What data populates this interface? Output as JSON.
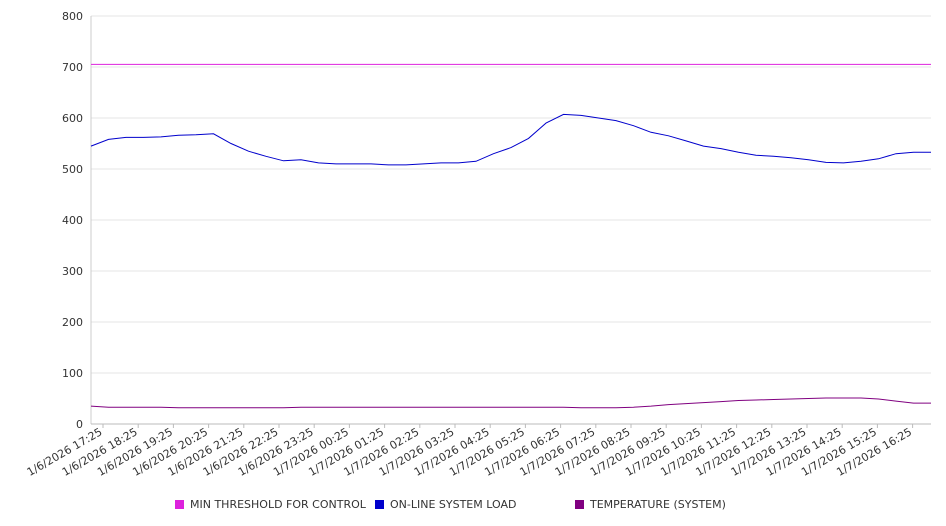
{
  "chart_data": {
    "type": "line",
    "yticks": [
      0,
      100,
      200,
      300,
      400,
      500,
      600,
      700,
      800
    ],
    "ylim": [
      0,
      800
    ],
    "grid": true,
    "legend_position": "bottom",
    "x_tick_labels": [
      "1/6/2026 17:25",
      "1/6/2026 18:25",
      "1/6/2026 19:25",
      "1/6/2026 20:25",
      "1/6/2026 21:25",
      "1/6/2026 22:25",
      "1/6/2026 23:25",
      "1/7/2026 00:25",
      "1/7/2026 01:25",
      "1/7/2026 02:25",
      "1/7/2026 03:25",
      "1/7/2026 04:25",
      "1/7/2026 05:25",
      "1/7/2026 06:25",
      "1/7/2026 07:25",
      "1/7/2026 08:25",
      "1/7/2026 09:25",
      "1/7/2026 10:25",
      "1/7/2026 11:25",
      "1/7/2026 12:25",
      "1/7/2026 13:25",
      "1/7/2026 14:25",
      "1/7/2026 15:25",
      "1/7/2026 16:25"
    ],
    "x": [
      "1/6/2026 17:25",
      "1/6/2026 17:55",
      "1/6/2026 18:25",
      "1/6/2026 18:55",
      "1/6/2026 19:25",
      "1/6/2026 19:55",
      "1/6/2026 20:25",
      "1/6/2026 20:55",
      "1/6/2026 21:25",
      "1/6/2026 21:55",
      "1/6/2026 22:25",
      "1/6/2026 22:55",
      "1/6/2026 23:25",
      "1/6/2026 23:55",
      "1/7/2026 00:25",
      "1/7/2026 00:55",
      "1/7/2026 01:25",
      "1/7/2026 01:55",
      "1/7/2026 02:25",
      "1/7/2026 02:55",
      "1/7/2026 03:25",
      "1/7/2026 03:55",
      "1/7/2026 04:25",
      "1/7/2026 04:55",
      "1/7/2026 05:25",
      "1/7/2026 05:55",
      "1/7/2026 06:25",
      "1/7/2026 06:55",
      "1/7/2026 07:25",
      "1/7/2026 07:55",
      "1/7/2026 08:25",
      "1/7/2026 08:55",
      "1/7/2026 09:25",
      "1/7/2026 09:55",
      "1/7/2026 10:25",
      "1/7/2026 10:55",
      "1/7/2026 11:25",
      "1/7/2026 11:55",
      "1/7/2026 12:25",
      "1/7/2026 12:55",
      "1/7/2026 13:25",
      "1/7/2026 13:55",
      "1/7/2026 14:25",
      "1/7/2026 14:55",
      "1/7/2026 15:25",
      "1/7/2026 15:55",
      "1/7/2026 16:25",
      "1/7/2026 16:55",
      "1/7/2026 17:20"
    ],
    "series": [
      {
        "name": "MIN THRESHOLD FOR CONTROL",
        "color": "#dd22dd",
        "values": [
          705,
          705,
          705,
          705,
          705,
          705,
          705,
          705,
          705,
          705,
          705,
          705,
          705,
          705,
          705,
          705,
          705,
          705,
          705,
          705,
          705,
          705,
          705,
          705,
          705,
          705,
          705,
          705,
          705,
          705,
          705,
          705,
          705,
          705,
          705,
          705,
          705,
          705,
          705,
          705,
          705,
          705,
          705,
          705,
          705,
          705,
          705,
          705,
          705
        ]
      },
      {
        "name": "ON-LINE SYSTEM LOAD",
        "color": "#0000cc",
        "values": [
          545,
          558,
          562,
          562,
          563,
          566,
          567,
          569,
          550,
          535,
          525,
          516,
          518,
          512,
          510,
          510,
          510,
          508,
          508,
          510,
          512,
          512,
          515,
          530,
          542,
          560,
          590,
          607,
          605,
          600,
          595,
          585,
          572,
          565,
          555,
          545,
          540,
          533,
          527,
          525,
          522,
          518,
          513,
          512,
          515,
          520,
          530,
          533,
          533
        ]
      },
      {
        "name": "TEMPERATURE (SYSTEM)",
        "color": "#800080",
        "values": [
          35,
          33,
          33,
          33,
          33,
          32,
          32,
          32,
          32,
          32,
          32,
          32,
          33,
          33,
          33,
          33,
          33,
          33,
          33,
          33,
          33,
          33,
          33,
          33,
          33,
          33,
          33,
          33,
          32,
          32,
          32,
          33,
          35,
          38,
          40,
          42,
          44,
          46,
          47,
          48,
          49,
          50,
          51,
          51,
          51,
          49,
          45,
          41,
          41
        ]
      }
    ]
  }
}
